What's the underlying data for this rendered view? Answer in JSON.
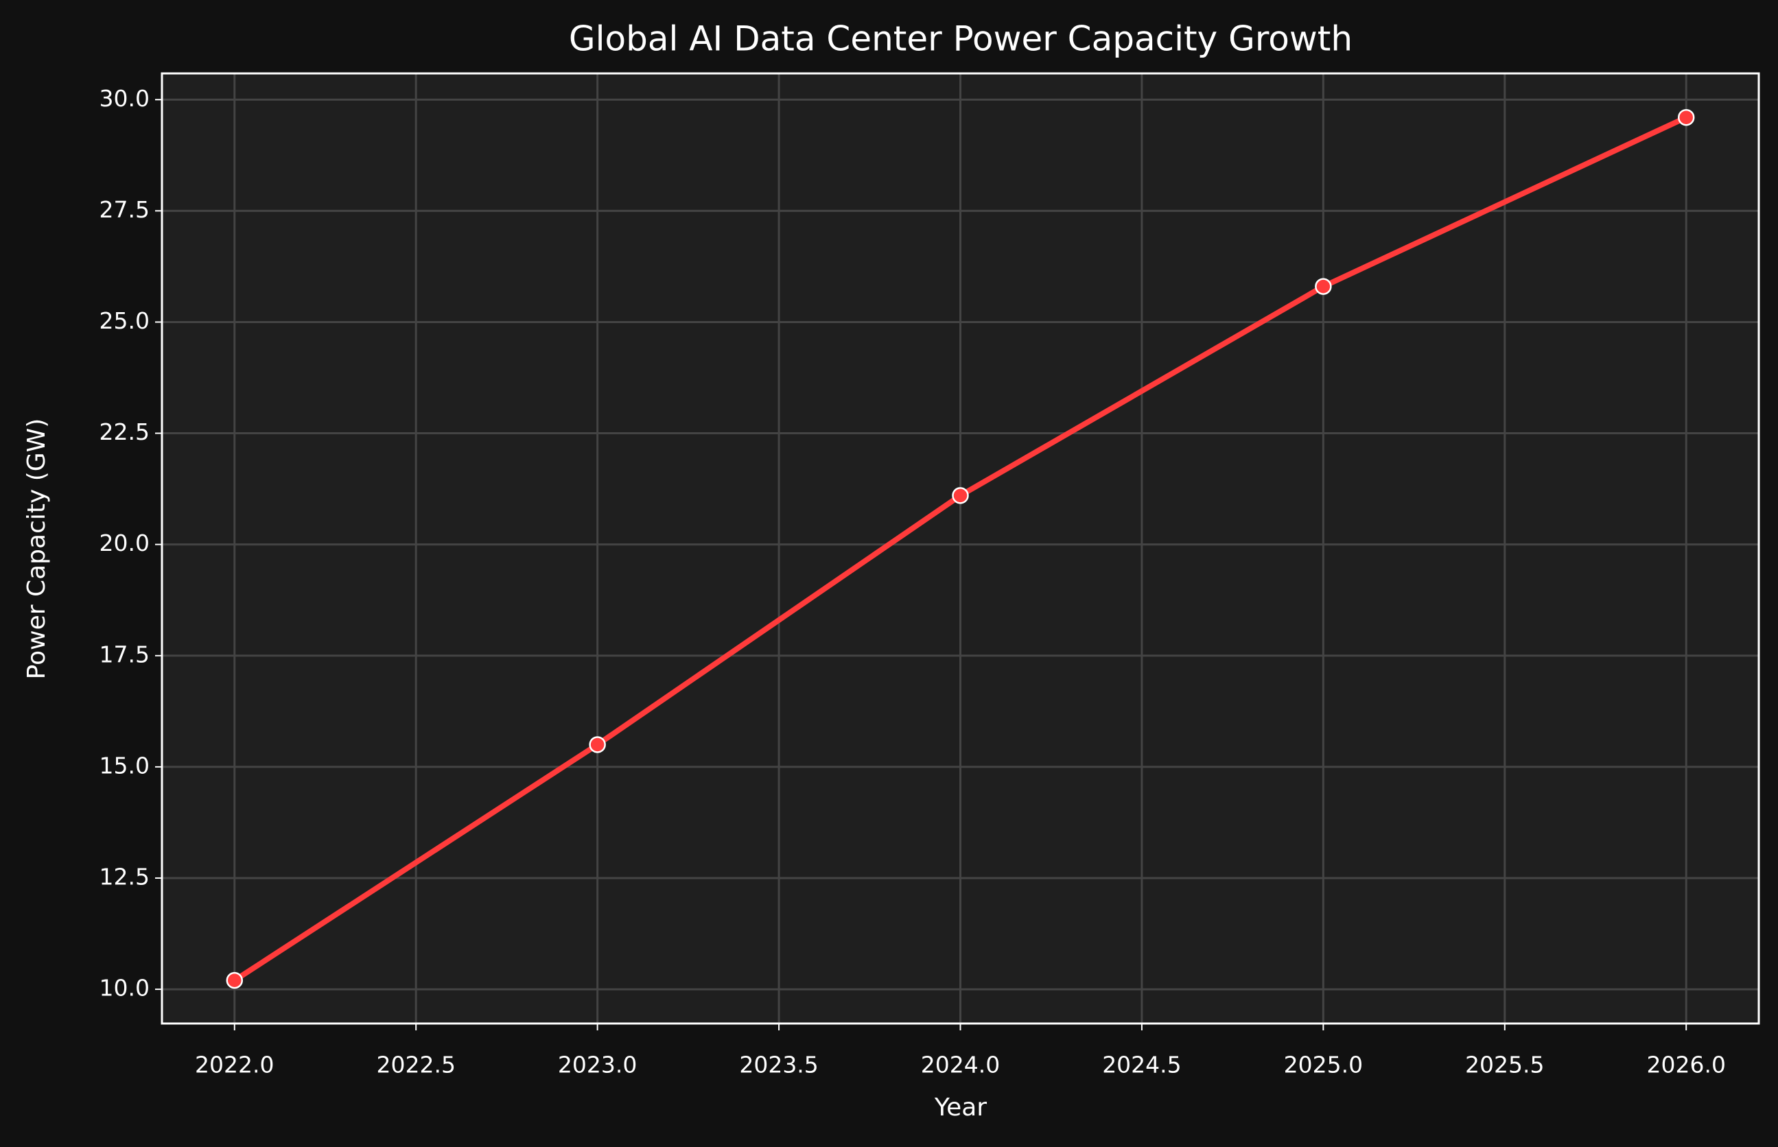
{
  "chart_data": {
    "type": "line",
    "title": "Global AI Data Center Power Capacity Growth",
    "x_label": "Year",
    "y_label": "Power Capacity (GW)",
    "x": [
      2022,
      2023,
      2024,
      2025,
      2026
    ],
    "series": [
      {
        "name": "Power Capacity",
        "color": "#ff3b3b",
        "values": [
          10.2,
          15.5,
          21.1,
          25.8,
          29.6
        ]
      }
    ],
    "xlim": [
      2021.8,
      2026.2
    ],
    "xticks": [
      {
        "value": 2022,
        "label": "2022.0"
      },
      2022.5,
      {
        "value": 2023,
        "label": "2023.0"
      },
      2023.5,
      {
        "value": 2024,
        "label": "2024.0"
      },
      2024.5,
      {
        "value": 2025,
        "label": "2025.0"
      },
      2025.5,
      {
        "value": 2026,
        "label": "2026.0"
      }
    ],
    "ylim": [
      9.23,
      30.59
    ],
    "yticks": [
      {
        "value": 10,
        "label": "10.0"
      },
      12.5,
      {
        "value": 15,
        "label": "15.0"
      },
      17.5,
      {
        "value": 20,
        "label": "20.0"
      },
      22.5,
      {
        "value": 25,
        "label": "25.0"
      },
      27.5,
      {
        "value": 30,
        "label": "30.0"
      }
    ],
    "grid": true
  }
}
